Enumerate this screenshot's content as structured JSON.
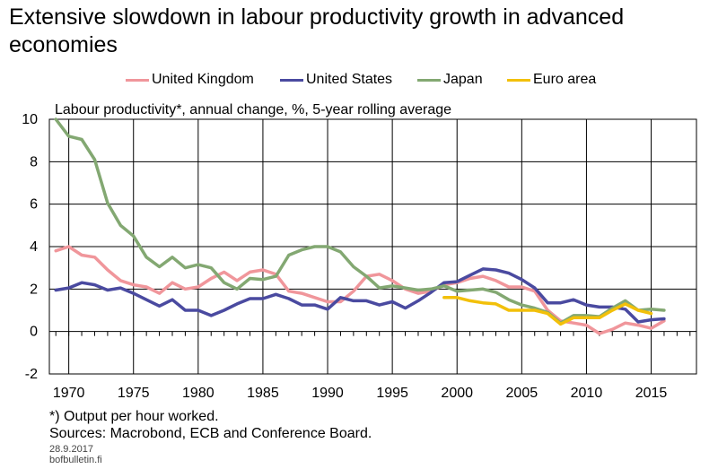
{
  "title": "Extensive slowdown in labour productivity growth in advanced economies",
  "subtitle": "Labour productivity*, annual change, %, 5-year rolling average",
  "footnote": "*) Output per hour worked.",
  "sources": "Sources: Macrobond, ECB and Conference Board.",
  "date": "28.9.2017",
  "site": "bofbulletin.fi",
  "chart_data": {
    "type": "line",
    "title": "Extensive slowdown in labour productivity growth in advanced economies",
    "ylabel": "Labour productivity*, annual change, %, 5-year rolling average",
    "xlabel": "",
    "xlim": [
      1968.5,
      2018.5
    ],
    "ylim": [
      -2,
      10
    ],
    "yticks": [
      -2,
      0,
      2,
      4,
      6,
      8,
      10
    ],
    "xticks": [
      1970,
      1975,
      1980,
      1985,
      1990,
      1995,
      2000,
      2005,
      2010,
      2015
    ],
    "grid": true,
    "legend_position": "top",
    "series": [
      {
        "name": "United Kingdom",
        "color": "#f0969b",
        "x": [
          1969,
          1970,
          1971,
          1972,
          1973,
          1974,
          1975,
          1976,
          1977,
          1978,
          1979,
          1980,
          1981,
          1982,
          1983,
          1984,
          1985,
          1986,
          1987,
          1988,
          1989,
          1990,
          1991,
          1992,
          1993,
          1994,
          1995,
          1996,
          1997,
          1998,
          1999,
          2000,
          2001,
          2002,
          2003,
          2004,
          2005,
          2006,
          2007,
          2008,
          2009,
          2010,
          2011,
          2012,
          2013,
          2014,
          2015,
          2016
        ],
        "values": [
          3.8,
          4.0,
          3.6,
          3.5,
          2.9,
          2.4,
          2.2,
          2.1,
          1.8,
          2.3,
          2.0,
          2.1,
          2.5,
          2.8,
          2.4,
          2.8,
          2.9,
          2.7,
          1.9,
          1.8,
          1.6,
          1.4,
          1.4,
          1.9,
          2.6,
          2.7,
          2.4,
          2.0,
          1.8,
          1.9,
          2.2,
          2.3,
          2.5,
          2.6,
          2.4,
          2.1,
          2.1,
          1.9,
          1.0,
          0.5,
          0.4,
          0.3,
          -0.1,
          0.1,
          0.4,
          0.3,
          0.15,
          0.5
        ]
      },
      {
        "name": "United States",
        "color": "#4a4aa0",
        "x": [
          1969,
          1970,
          1971,
          1972,
          1973,
          1974,
          1975,
          1976,
          1977,
          1978,
          1979,
          1980,
          1981,
          1982,
          1983,
          1984,
          1985,
          1986,
          1987,
          1988,
          1989,
          1990,
          1991,
          1992,
          1993,
          1994,
          1995,
          1996,
          1997,
          1998,
          1999,
          2000,
          2001,
          2002,
          2003,
          2004,
          2005,
          2006,
          2007,
          2008,
          2009,
          2010,
          2011,
          2012,
          2013,
          2014,
          2015,
          2016
        ],
        "values": [
          1.95,
          2.05,
          2.3,
          2.2,
          1.95,
          2.05,
          1.8,
          1.5,
          1.2,
          1.5,
          1.0,
          1.0,
          0.75,
          1.0,
          1.3,
          1.55,
          1.55,
          1.75,
          1.55,
          1.25,
          1.25,
          1.05,
          1.6,
          1.45,
          1.45,
          1.25,
          1.4,
          1.1,
          1.45,
          1.85,
          2.3,
          2.35,
          2.65,
          2.95,
          2.9,
          2.75,
          2.45,
          2.05,
          1.35,
          1.35,
          1.5,
          1.25,
          1.15,
          1.15,
          1.05,
          0.45,
          0.55,
          0.6
        ]
      },
      {
        "name": "Japan",
        "color": "#83a872",
        "x": [
          1969,
          1970,
          1971,
          1972,
          1973,
          1974,
          1975,
          1976,
          1977,
          1978,
          1979,
          1980,
          1981,
          1982,
          1983,
          1984,
          1985,
          1986,
          1987,
          1988,
          1989,
          1990,
          1991,
          1992,
          1993,
          1994,
          1995,
          1996,
          1997,
          1998,
          1999,
          2000,
          2001,
          2002,
          2003,
          2004,
          2005,
          2006,
          2007,
          2008,
          2009,
          2010,
          2011,
          2012,
          2013,
          2014,
          2015,
          2016
        ],
        "values": [
          10.0,
          9.2,
          9.05,
          8.1,
          6.05,
          5.0,
          4.5,
          3.5,
          3.05,
          3.5,
          3.0,
          3.15,
          3.0,
          2.3,
          2.0,
          2.5,
          2.45,
          2.6,
          3.6,
          3.85,
          4.0,
          4.0,
          3.75,
          3.05,
          2.6,
          2.05,
          2.15,
          2.05,
          1.95,
          2.0,
          2.15,
          1.9,
          1.95,
          2.0,
          1.85,
          1.5,
          1.25,
          1.1,
          0.9,
          0.4,
          0.75,
          0.75,
          0.7,
          1.1,
          1.45,
          1.0,
          1.05,
          1.0
        ]
      },
      {
        "name": "Euro area",
        "color": "#f2c00a",
        "x": [
          1999,
          2000,
          2001,
          2002,
          2003,
          2004,
          2005,
          2006,
          2007,
          2008,
          2009,
          2010,
          2011,
          2012,
          2013,
          2014,
          2015
        ],
        "values": [
          1.6,
          1.6,
          1.45,
          1.35,
          1.3,
          1.0,
          1.0,
          1.0,
          0.85,
          0.35,
          0.65,
          0.65,
          0.65,
          1.0,
          1.3,
          1.0,
          0.85
        ]
      }
    ]
  }
}
